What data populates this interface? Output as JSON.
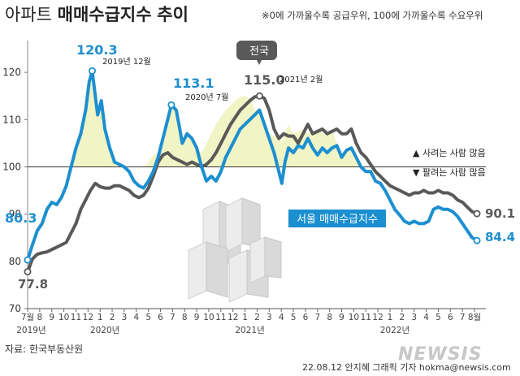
{
  "header": {
    "title_plain": "아파트",
    "title_strong": "매매수급지수",
    "title_suffix": "추이",
    "note": "※0에 가까울수록 공급우위, 100에 가까울수록 수요우위"
  },
  "colors": {
    "seoul": "#1c8fd0",
    "national": "#595959",
    "fill": "#f1f4c4",
    "baseline": "#333333"
  },
  "legend": {
    "up": "▲ 사려는 사람 많음",
    "down": "▼ 팔려는 사람 많음"
  },
  "footer": {
    "source": "자료: 한국부동산원",
    "credit": "22.08.12 안지혜 그래픽 기자 hokma@newsis.com",
    "watermark": "NEWSIS"
  },
  "chart_data": {
    "type": "line",
    "title": "아파트 매매수급지수 추이",
    "ylim": [
      70,
      125
    ],
    "yticks": [
      70,
      80,
      90,
      100,
      110,
      120
    ],
    "baseline": 100,
    "xlim": [
      0,
      37.4
    ],
    "month_ticks": [
      {
        "x": 0,
        "label": "7월"
      },
      {
        "x": 1,
        "label": "8"
      },
      {
        "x": 2,
        "label": "9"
      },
      {
        "x": 3,
        "label": "10"
      },
      {
        "x": 4,
        "label": "11"
      },
      {
        "x": 5,
        "label": "12"
      },
      {
        "x": 6,
        "label": "1"
      },
      {
        "x": 7,
        "label": "2"
      },
      {
        "x": 8,
        "label": "3"
      },
      {
        "x": 9,
        "label": "4"
      },
      {
        "x": 10,
        "label": "5"
      },
      {
        "x": 11,
        "label": "6"
      },
      {
        "x": 12,
        "label": "7"
      },
      {
        "x": 13,
        "label": "8"
      },
      {
        "x": 14,
        "label": "9"
      },
      {
        "x": 15,
        "label": "10"
      },
      {
        "x": 16,
        "label": "11"
      },
      {
        "x": 17,
        "label": "12"
      },
      {
        "x": 18,
        "label": "1"
      },
      {
        "x": 19,
        "label": "2"
      },
      {
        "x": 20,
        "label": "3"
      },
      {
        "x": 21,
        "label": "4"
      },
      {
        "x": 22,
        "label": "5"
      },
      {
        "x": 23,
        "label": "6"
      },
      {
        "x": 24,
        "label": "7"
      },
      {
        "x": 25,
        "label": "8"
      },
      {
        "x": 26,
        "label": "9"
      },
      {
        "x": 27,
        "label": "10"
      },
      {
        "x": 28,
        "label": "11"
      },
      {
        "x": 29,
        "label": "12"
      },
      {
        "x": 30,
        "label": "1"
      },
      {
        "x": 31,
        "label": "2"
      },
      {
        "x": 32,
        "label": "3"
      },
      {
        "x": 33,
        "label": "4"
      },
      {
        "x": 34,
        "label": "5"
      },
      {
        "x": 35,
        "label": "6"
      },
      {
        "x": 36,
        "label": "7"
      },
      {
        "x": 37,
        "label": "8월"
      }
    ],
    "year_labels": [
      {
        "x": 0.3,
        "label": "2019년"
      },
      {
        "x": 6.4,
        "label": "2020년"
      },
      {
        "x": 18.4,
        "label": "2021년"
      },
      {
        "x": 30.4,
        "label": "2022년"
      }
    ],
    "series": [
      {
        "name": "서울 매매수급지수",
        "end_label": "84.4",
        "points": [
          [
            0,
            80.3
          ],
          [
            0.4,
            83.5
          ],
          [
            0.8,
            86.5
          ],
          [
            1.2,
            88
          ],
          [
            1.6,
            91
          ],
          [
            2,
            92.5
          ],
          [
            2.4,
            92
          ],
          [
            2.8,
            93.5
          ],
          [
            3.2,
            96
          ],
          [
            3.6,
            100
          ],
          [
            4,
            104
          ],
          [
            4.4,
            107
          ],
          [
            4.8,
            112
          ],
          [
            5.1,
            118
          ],
          [
            5.35,
            120.3
          ],
          [
            5.6,
            115
          ],
          [
            5.8,
            111
          ],
          [
            6.1,
            114
          ],
          [
            6.4,
            108
          ],
          [
            6.8,
            104
          ],
          [
            7.2,
            101
          ],
          [
            7.6,
            100.5
          ],
          [
            8,
            100
          ],
          [
            8.4,
            99
          ],
          [
            8.8,
            97
          ],
          [
            9.2,
            96
          ],
          [
            9.6,
            95.5
          ],
          [
            10,
            97
          ],
          [
            10.4,
            99
          ],
          [
            10.8,
            102
          ],
          [
            11.2,
            106
          ],
          [
            11.6,
            110
          ],
          [
            11.9,
            113.1
          ],
          [
            12.3,
            112
          ],
          [
            12.6,
            108
          ],
          [
            12.8,
            105
          ],
          [
            13.2,
            107
          ],
          [
            13.6,
            106
          ],
          [
            14,
            104
          ],
          [
            14.4,
            100
          ],
          [
            14.8,
            97
          ],
          [
            15.2,
            98
          ],
          [
            15.6,
            97
          ],
          [
            16,
            99
          ],
          [
            16.4,
            102
          ],
          [
            16.8,
            104
          ],
          [
            17.2,
            106
          ],
          [
            17.6,
            108
          ],
          [
            18,
            109
          ],
          [
            18.4,
            110
          ],
          [
            18.8,
            111
          ],
          [
            19.2,
            112
          ],
          [
            19.6,
            109
          ],
          [
            20,
            106
          ],
          [
            20.4,
            103
          ],
          [
            20.8,
            99
          ],
          [
            21.05,
            96.5
          ],
          [
            21.3,
            101
          ],
          [
            21.6,
            104
          ],
          [
            22,
            103
          ],
          [
            22.4,
            104.5
          ],
          [
            22.8,
            104
          ],
          [
            23.2,
            106
          ],
          [
            23.6,
            104
          ],
          [
            24,
            102.5
          ],
          [
            24.4,
            104
          ],
          [
            24.8,
            103
          ],
          [
            25.2,
            104
          ],
          [
            25.6,
            104.5
          ],
          [
            26,
            102
          ],
          [
            26.4,
            103.5
          ],
          [
            26.8,
            104
          ],
          [
            27.2,
            102
          ],
          [
            27.6,
            100
          ],
          [
            28,
            99
          ],
          [
            28.4,
            99
          ],
          [
            28.8,
            97
          ],
          [
            29.2,
            96.5
          ],
          [
            29.6,
            95
          ],
          [
            30,
            93
          ],
          [
            30.4,
            91
          ],
          [
            30.8,
            89.8
          ],
          [
            31.2,
            88.5
          ],
          [
            31.6,
            88
          ],
          [
            32,
            88.5
          ],
          [
            32.4,
            88
          ],
          [
            32.8,
            88
          ],
          [
            33.2,
            88.5
          ],
          [
            33.6,
            91
          ],
          [
            34,
            91.5
          ],
          [
            34.4,
            91
          ],
          [
            34.8,
            91
          ],
          [
            35.2,
            90.5
          ],
          [
            35.6,
            89.5
          ],
          [
            36,
            88
          ],
          [
            36.4,
            86.5
          ],
          [
            36.8,
            85
          ],
          [
            37.2,
            84.4
          ]
        ]
      },
      {
        "name": "전국",
        "end_label": "90.1",
        "points": [
          [
            0,
            77.8
          ],
          [
            0.4,
            80.5
          ],
          [
            0.8,
            81.5
          ],
          [
            1.2,
            81.8
          ],
          [
            1.6,
            82
          ],
          [
            2,
            82.5
          ],
          [
            2.4,
            83
          ],
          [
            2.8,
            83.5
          ],
          [
            3.2,
            84
          ],
          [
            3.6,
            86
          ],
          [
            4,
            88
          ],
          [
            4.4,
            91
          ],
          [
            4.8,
            93
          ],
          [
            5.2,
            95
          ],
          [
            5.6,
            96.5
          ],
          [
            6,
            95.8
          ],
          [
            6.4,
            95.5
          ],
          [
            6.8,
            95.5
          ],
          [
            7.2,
            96
          ],
          [
            7.6,
            96
          ],
          [
            8,
            95.5
          ],
          [
            8.4,
            95
          ],
          [
            8.8,
            94
          ],
          [
            9.2,
            93.5
          ],
          [
            9.6,
            94
          ],
          [
            10,
            95.5
          ],
          [
            10.4,
            98
          ],
          [
            10.8,
            101
          ],
          [
            11.2,
            102.5
          ],
          [
            11.6,
            103
          ],
          [
            12,
            102
          ],
          [
            12.4,
            101.5
          ],
          [
            12.8,
            101
          ],
          [
            13.2,
            100.5
          ],
          [
            13.6,
            101
          ],
          [
            14,
            100.5
          ],
          [
            14.4,
            100
          ],
          [
            14.8,
            100.5
          ],
          [
            15.2,
            101.5
          ],
          [
            15.6,
            103
          ],
          [
            16,
            105
          ],
          [
            16.4,
            107
          ],
          [
            16.8,
            109
          ],
          [
            17.2,
            110.5
          ],
          [
            17.6,
            112
          ],
          [
            18,
            113
          ],
          [
            18.4,
            114
          ],
          [
            18.8,
            114.8
          ],
          [
            19.2,
            115
          ],
          [
            19.6,
            114.5
          ],
          [
            20,
            112
          ],
          [
            20.4,
            108
          ],
          [
            20.8,
            106
          ],
          [
            21.2,
            107
          ],
          [
            21.6,
            106.5
          ],
          [
            22,
            106.5
          ],
          [
            22.4,
            105
          ],
          [
            22.8,
            107
          ],
          [
            23.2,
            109
          ],
          [
            23.6,
            107
          ],
          [
            24,
            107.5
          ],
          [
            24.4,
            108
          ],
          [
            24.8,
            107
          ],
          [
            25.2,
            107.5
          ],
          [
            25.6,
            108
          ],
          [
            26,
            107
          ],
          [
            26.4,
            107
          ],
          [
            26.8,
            108
          ],
          [
            27.2,
            105
          ],
          [
            27.6,
            103
          ],
          [
            28,
            102
          ],
          [
            28.4,
            100.5
          ],
          [
            28.8,
            99
          ],
          [
            29.2,
            98
          ],
          [
            29.6,
            97
          ],
          [
            30,
            96
          ],
          [
            30.4,
            95.5
          ],
          [
            30.8,
            95
          ],
          [
            31.2,
            94.5
          ],
          [
            31.6,
            94
          ],
          [
            32,
            94.5
          ],
          [
            32.4,
            94.5
          ],
          [
            32.8,
            95
          ],
          [
            33.2,
            94.5
          ],
          [
            33.6,
            94.5
          ],
          [
            34,
            95
          ],
          [
            34.4,
            94.5
          ],
          [
            34.8,
            94.5
          ],
          [
            35.2,
            94
          ],
          [
            35.6,
            93
          ],
          [
            36,
            92.5
          ],
          [
            36.4,
            91.5
          ],
          [
            36.8,
            90.5
          ],
          [
            37.2,
            90.1
          ]
        ]
      }
    ],
    "series_labels": {
      "seoul_box": "서울 매매수급지수",
      "national_box": "전국"
    },
    "annotations": [
      {
        "value": "80.3",
        "date": ""
      },
      {
        "value": "77.8",
        "date": ""
      },
      {
        "value": "120.3",
        "date": "2019년 12월"
      },
      {
        "value": "113.1",
        "date": "2020년 7월"
      },
      {
        "value": "115.0",
        "date": "2021년 2월"
      }
    ]
  }
}
